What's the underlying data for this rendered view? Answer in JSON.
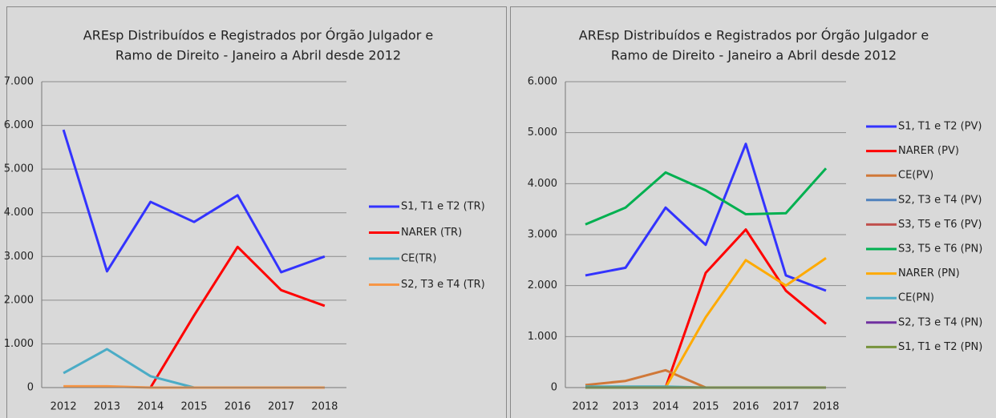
{
  "chart_data": [
    {
      "type": "line",
      "title": [
        "AREsp Distribuídos e Registrados por Órgão Julgador e",
        "Ramo de Direito - Janeiro a Abril desde 2012"
      ],
      "categories": [
        "2012",
        "2013",
        "2014",
        "2015",
        "2016",
        "2017",
        "2018"
      ],
      "ylim": [
        0,
        7000
      ],
      "yticks": [
        0,
        {
          "value": 1000,
          "label": "1.000"
        },
        {
          "value": 2000,
          "label": "2.000"
        },
        {
          "value": 3000,
          "label": "3.000"
        },
        {
          "value": 4000,
          "label": "4.000"
        },
        {
          "value": 5000,
          "label": "5.000"
        },
        {
          "value": 6000,
          "label": "6.000"
        },
        {
          "value": 7000,
          "label": "7.000"
        }
      ],
      "grid": true,
      "legend": "right",
      "series": [
        {
          "name": "S1, T1 e T2 (TR)",
          "color": "#3333ff",
          "values": [
            5900,
            2660,
            4250,
            3790,
            4400,
            2640,
            3000
          ]
        },
        {
          "name": "NARER (TR)",
          "color": "#ff0000",
          "values": [
            null,
            null,
            0,
            1650,
            3220,
            2230,
            1870
          ]
        },
        {
          "name": "CE(TR)",
          "color": "#4bacc6",
          "values": [
            330,
            880,
            260,
            0,
            0,
            0,
            0
          ]
        },
        {
          "name": "S2, T3 e T4 (TR)",
          "color": "#f79646",
          "values": [
            30,
            30,
            0,
            0,
            0,
            0,
            0
          ]
        }
      ]
    },
    {
      "type": "line",
      "title": [
        "AREsp Distribuídos e Registrados por Órgão Julgador e",
        "Ramo de Direito - Janeiro a Abril desde 2012"
      ],
      "categories": [
        "2012",
        "2013",
        "2014",
        "2015",
        "2016",
        "2017",
        "2018"
      ],
      "ylim": [
        0,
        6000
      ],
      "yticks": [
        0,
        {
          "value": 1000,
          "label": "1.000"
        },
        {
          "value": 2000,
          "label": "2.000"
        },
        {
          "value": 3000,
          "label": "3.000"
        },
        {
          "value": 4000,
          "label": "4.000"
        },
        {
          "value": 5000,
          "label": "5.000"
        },
        {
          "value": 6000,
          "label": "6.000"
        }
      ],
      "grid": true,
      "legend": "right",
      "series": [
        {
          "name": "S1, T1 e T2 (PV)",
          "color": "#3333ff",
          "values": [
            2200,
            2350,
            3530,
            2800,
            4780,
            2200,
            1900
          ]
        },
        {
          "name": "NARER (PV)",
          "color": "#ff0000",
          "values": [
            null,
            null,
            0,
            2250,
            3100,
            1900,
            1250
          ]
        },
        {
          "name": "CE(PV)",
          "color": "#d07838",
          "values": [
            50,
            130,
            340,
            0,
            0,
            0,
            0
          ]
        },
        {
          "name": "S2, T3 e T4 (PV)",
          "color": "#4f81bd",
          "values": [
            0,
            0,
            0,
            0,
            0,
            0,
            0
          ]
        },
        {
          "name": "S3, T5 e T6 (PV)",
          "color": "#c0504d",
          "values": [
            0,
            0,
            0,
            0,
            0,
            0,
            0
          ]
        },
        {
          "name": "S3, T5 e T6 (PN)",
          "color": "#00b050",
          "values": [
            3200,
            3530,
            4220,
            3870,
            3400,
            3420,
            4300
          ]
        },
        {
          "name": "NARER (PN)",
          "color": "#ffaa00",
          "values": [
            null,
            null,
            0,
            1380,
            2500,
            2000,
            2540
          ]
        },
        {
          "name": "CE(PN)",
          "color": "#4bacc6",
          "values": [
            20,
            20,
            20,
            0,
            0,
            0,
            0
          ]
        },
        {
          "name": "S2, T3 e T4 (PN)",
          "color": "#7030a0",
          "values": [
            0,
            0,
            0,
            0,
            0,
            0,
            0
          ]
        },
        {
          "name": "S1, T1 e T2 (PN)",
          "color": "#77933c",
          "values": [
            0,
            0,
            0,
            0,
            0,
            0,
            0
          ]
        }
      ]
    }
  ]
}
